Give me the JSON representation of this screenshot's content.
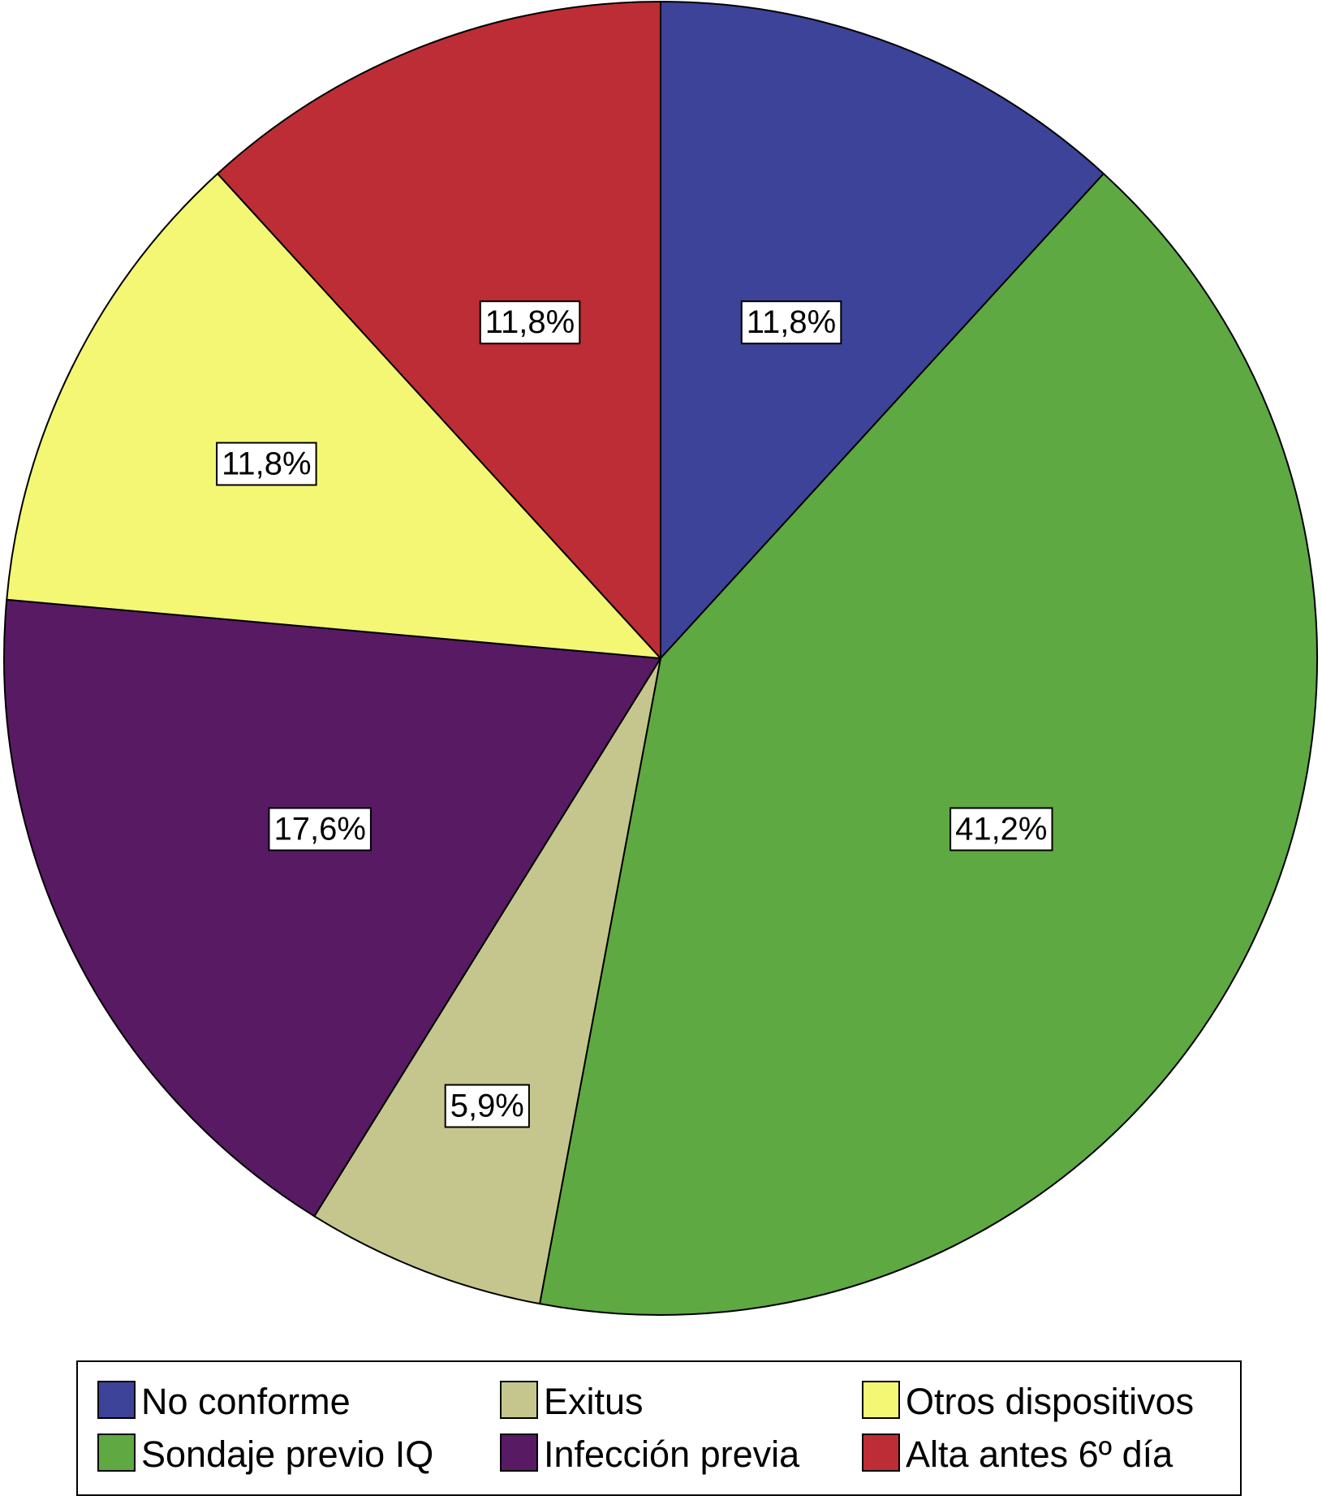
{
  "chart_data": {
    "type": "pie",
    "start_angle": "12 o'clock",
    "direction": "clockwise",
    "slices": [
      {
        "name": "No conforme",
        "value": 11.8,
        "label": "11,8%",
        "color": "#3D4398"
      },
      {
        "name": "Sondaje previo IQ",
        "value": 41.2,
        "label": "41,2%",
        "color": "#5EA942"
      },
      {
        "name": "Exitus",
        "value": 5.9,
        "label": "5,9%",
        "color": "#C5C68E"
      },
      {
        "name": "Infección previa",
        "value": 17.6,
        "label": "17,6%",
        "color": "#581A63"
      },
      {
        "name": "Otros dispositivos",
        "value": 11.8,
        "label": "11,8%",
        "color": "#F3F774"
      },
      {
        "name": "Alta antes 6º día",
        "value": 11.8,
        "label": "11,8%",
        "color": "#BD2D35"
      }
    ],
    "legend": {
      "placement": "bottom",
      "rows": [
        [
          "No conforme",
          "Exitus",
          "Otros dispositivos"
        ],
        [
          "Sondaje previo IQ",
          "Infección previa",
          "Alta antes 6º día"
        ]
      ]
    }
  }
}
